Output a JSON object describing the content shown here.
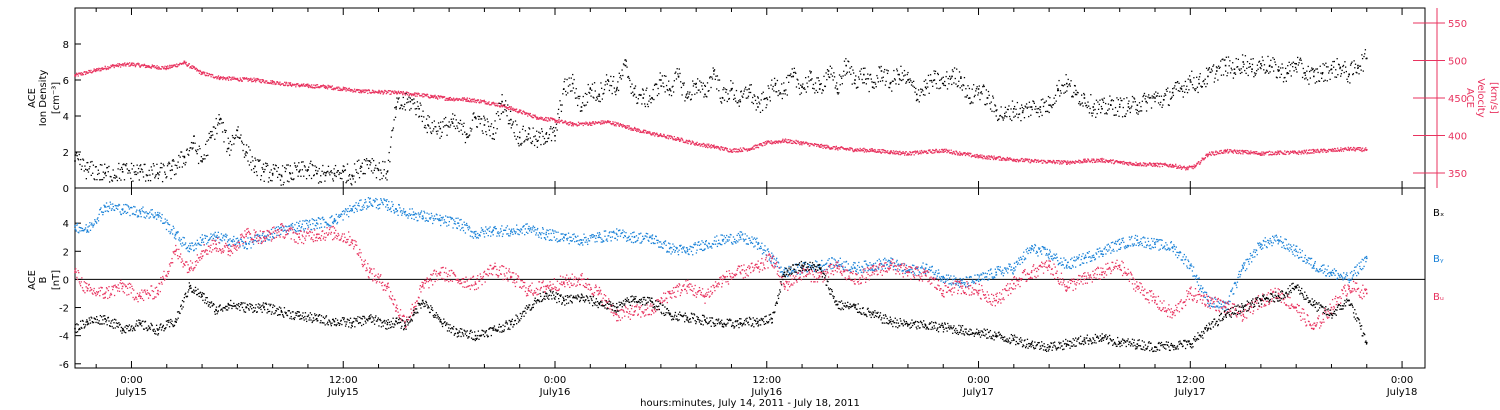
{
  "colors": {
    "density": "#000000",
    "velocity": "#e8335f",
    "bx": "#000000",
    "by": "#1a82d8",
    "bz": "#e8335f",
    "axis": "#000000"
  },
  "xaxis": {
    "title": "hours:minutes, July 14, 2011 - July 18, 2011",
    "range_hours": [
      20.8,
      97.3
    ],
    "ticks": [
      {
        "h": 24,
        "time": "0:00",
        "day": "July15"
      },
      {
        "h": 36,
        "time": "12:00",
        "day": "July15"
      },
      {
        "h": 48,
        "time": "0:00",
        "day": "July16"
      },
      {
        "h": 60,
        "time": "12:00",
        "day": "July16"
      },
      {
        "h": 72,
        "time": "0:00",
        "day": "July17"
      },
      {
        "h": 84,
        "time": "12:00",
        "day": "July17"
      },
      {
        "h": 96,
        "time": "0:00",
        "day": "July18"
      }
    ]
  },
  "chart_data": [
    {
      "type": "scatter",
      "panel": "top",
      "y_left": {
        "label_line1": "ACE",
        "label_line2": "Ion Density",
        "units": "[cm⁻³]",
        "ylim": [
          0,
          10
        ],
        "ticks": [
          0,
          2,
          4,
          6,
          8
        ]
      },
      "y_right": {
        "label_line1": "ACE",
        "label_line2": "Velocity",
        "units": "[km/s]",
        "ylim": [
          330,
          570
        ],
        "ticks": [
          350,
          400,
          450,
          500,
          550
        ]
      },
      "series": [
        {
          "key": "density",
          "axis": "left",
          "x": [
            20.8,
            21.5,
            22.5,
            23.5,
            24.5,
            25.5,
            26.3,
            27.0,
            27.5,
            28.0,
            28.5,
            29.0,
            29.5,
            30.0,
            30.5,
            31.0,
            31.5,
            32.0,
            32.5,
            33.0,
            33.5,
            34.0,
            34.5,
            35.0,
            35.5,
            36.0,
            36.5,
            37.0,
            37.5,
            38.0,
            38.5,
            39.0,
            39.3,
            39.8,
            40.3,
            40.8,
            41.5,
            42.2,
            43.0,
            43.5,
            44.0,
            44.5,
            45.0,
            45.5,
            46.0,
            46.5,
            47.0,
            47.5,
            48.0,
            48.5,
            49.0,
            49.5,
            50.0,
            50.5,
            51.0,
            51.5,
            52.0,
            52.5,
            53.0,
            53.5,
            54.0,
            54.5,
            55.0,
            55.5,
            56.0,
            56.5,
            57.0,
            57.5,
            58.0,
            58.5,
            59.0,
            59.5,
            60.0,
            60.5,
            61.0,
            61.5,
            62.0,
            62.5,
            63.0,
            63.5,
            64.0,
            64.5,
            65.0,
            65.5,
            66.0,
            66.5,
            67.0,
            67.5,
            68.0,
            68.5,
            69.0,
            69.5,
            70.0,
            70.5,
            71.0,
            71.5,
            72.0,
            72.5,
            73.0,
            73.5,
            74.0,
            74.5,
            75.0,
            75.5,
            76.0,
            76.5,
            77.0,
            77.5,
            78.0,
            78.5,
            79.0,
            79.5,
            80.0,
            80.5,
            81.0,
            81.5,
            82.0,
            82.5,
            83.0,
            83.5,
            84.0,
            84.5,
            85.0,
            85.5,
            86.0,
            86.5,
            87.0,
            87.5,
            88.0,
            88.5,
            89.0,
            89.5,
            90.0,
            90.5,
            91.0,
            91.5,
            92.0,
            92.5,
            93.0,
            93.5,
            94.0
          ],
          "y": [
            1.5,
            1.0,
            0.8,
            0.9,
            0.9,
            0.8,
            1.0,
            1.7,
            2.5,
            1.5,
            2.8,
            3.8,
            2.2,
            3.2,
            2.0,
            1.2,
            0.9,
            0.8,
            0.7,
            0.8,
            0.9,
            1.0,
            0.8,
            0.7,
            0.8,
            0.9,
            0.7,
            1.2,
            1.5,
            1.0,
            0.9,
            4.5,
            4.6,
            4.8,
            4.4,
            3.5,
            3.3,
            3.6,
            3.0,
            3.9,
            3.5,
            3.0,
            4.8,
            3.8,
            2.8,
            3.0,
            2.6,
            3.0,
            2.9,
            5.5,
            5.8,
            4.5,
            5.5,
            5.2,
            6.0,
            5.5,
            6.8,
            5.2,
            5.0,
            5.0,
            6.0,
            5.5,
            6.2,
            5.0,
            5.8,
            5.2,
            6.5,
            5.0,
            5.5,
            4.8,
            5.5,
            4.5,
            5.0,
            5.8,
            5.4,
            6.2,
            5.6,
            6.0,
            5.5,
            6.5,
            5.5,
            6.8,
            6.0,
            6.3,
            5.6,
            6.5,
            5.8,
            6.3,
            6.0,
            5.2,
            5.6,
            6.0,
            5.8,
            6.2,
            6.1,
            5.0,
            5.5,
            5.0,
            4.3,
            4.0,
            4.4,
            4.2,
            4.5,
            4.5,
            4.6,
            5.5,
            5.8,
            5.2,
            5.0,
            4.5,
            4.4,
            4.6,
            4.5,
            4.5,
            4.6,
            4.8,
            5.0,
            4.9,
            5.3,
            5.5,
            6.0,
            5.8,
            6.2,
            6.5,
            6.8,
            6.6,
            7.0,
            6.6,
            6.9,
            6.8,
            6.5,
            6.4,
            6.9,
            6.4,
            6.2,
            6.4,
            6.6,
            6.7,
            6.3,
            6.8,
            7.2
          ]
        },
        {
          "key": "velocity",
          "axis": "right",
          "x": [
            20.8,
            22.0,
            23.0,
            24.0,
            25.0,
            26.0,
            27.0,
            28.0,
            29.0,
            30.0,
            31.0,
            32.0,
            33.0,
            34.0,
            35.0,
            36.0,
            37.0,
            38.0,
            39.0,
            40.0,
            41.0,
            42.0,
            43.0,
            44.0,
            45.0,
            46.0,
            47.0,
            48.0,
            49.0,
            50.0,
            51.0,
            52.0,
            53.0,
            54.0,
            55.0,
            56.0,
            57.0,
            58.0,
            59.0,
            60.0,
            61.0,
            62.0,
            63.0,
            64.0,
            65.0,
            66.0,
            67.0,
            68.0,
            69.0,
            70.0,
            71.0,
            72.0,
            73.0,
            74.0,
            75.0,
            76.0,
            77.0,
            78.0,
            79.0,
            80.0,
            81.0,
            82.0,
            83.0,
            83.8,
            84.3,
            85.0,
            86.0,
            87.0,
            88.0,
            89.0,
            90.0,
            91.0,
            92.0,
            93.0,
            94.0
          ],
          "y": [
            480,
            487,
            493,
            495,
            492,
            490,
            497,
            483,
            477,
            475,
            474,
            471,
            468,
            466,
            465,
            462,
            459,
            458,
            457,
            455,
            452,
            449,
            448,
            445,
            440,
            432,
            424,
            420,
            415,
            416,
            418,
            412,
            405,
            400,
            395,
            389,
            385,
            380,
            382,
            390,
            393,
            390,
            386,
            383,
            381,
            380,
            378,
            376,
            378,
            380,
            376,
            372,
            370,
            368,
            366,
            365,
            364,
            366,
            367,
            364,
            362,
            361,
            360,
            356,
            359,
            375,
            379,
            378,
            376,
            377,
            377,
            379,
            380,
            382,
            381
          ]
        }
      ]
    },
    {
      "type": "scatter",
      "panel": "bottom",
      "y_left": {
        "label_line1": "ACE",
        "label_line2": "B",
        "units": "[nT]",
        "ylim": [
          -6.3,
          6.5
        ],
        "ticks": [
          -6,
          -4,
          -2,
          0,
          2,
          4
        ]
      },
      "zero_line": true,
      "series": [
        {
          "key": "bx",
          "name": "Bₓ",
          "x": [
            20.8,
            21.5,
            22.5,
            23.5,
            24.5,
            25.5,
            26.5,
            27.3,
            28.0,
            28.8,
            29.5,
            30.5,
            31.5,
            32.5,
            33.5,
            34.5,
            35.5,
            36.5,
            37.5,
            38.5,
            39.0,
            39.5,
            40.0,
            40.5,
            41.5,
            42.5,
            43.5,
            44.5,
            45.5,
            46.5,
            47.5,
            48.5,
            49.5,
            50.5,
            51.5,
            52.5,
            53.5,
            54.5,
            55.5,
            56.5,
            57.5,
            58.5,
            59.5,
            60.3,
            61.0,
            62.0,
            63.0,
            64.0,
            65.0,
            66.0,
            67.0,
            68.0,
            69.0,
            70.0,
            71.0,
            72.0,
            73.0,
            74.0,
            75.0,
            76.0,
            77.0,
            78.0,
            79.0,
            80.0,
            81.0,
            82.0,
            83.0,
            84.0,
            85.0,
            86.0,
            87.0,
            88.0,
            89.0,
            90.0,
            91.0,
            92.0,
            93.0,
            94.0
          ],
          "y": [
            -3.5,
            -3.0,
            -2.8,
            -3.5,
            -3.2,
            -3.6,
            -3.0,
            -0.5,
            -1.2,
            -2.2,
            -1.8,
            -2.0,
            -2.0,
            -2.3,
            -2.6,
            -2.8,
            -3.0,
            -3.1,
            -2.8,
            -3.2,
            -3.0,
            -3.3,
            -2.5,
            -1.5,
            -3.0,
            -3.8,
            -4.0,
            -3.6,
            -3.2,
            -2.0,
            -1.0,
            -1.5,
            -1.3,
            -1.7,
            -2.0,
            -1.4,
            -1.6,
            -2.5,
            -2.7,
            -2.9,
            -3.2,
            -3.1,
            -3.0,
            -2.8,
            0.5,
            1.0,
            0.8,
            -1.8,
            -2.0,
            -2.5,
            -3.0,
            -3.2,
            -3.3,
            -3.4,
            -3.6,
            -3.8,
            -4.0,
            -4.3,
            -4.6,
            -4.8,
            -4.6,
            -4.3,
            -4.2,
            -4.5,
            -4.6,
            -4.8,
            -4.7,
            -4.6,
            -3.5,
            -2.5,
            -2.0,
            -1.5,
            -1.2,
            -0.5,
            -1.8,
            -2.5,
            -1.5,
            -4.5
          ]
        },
        {
          "key": "by",
          "name": "Bᵧ",
          "x": [
            20.8,
            21.5,
            22.5,
            23.5,
            24.5,
            25.5,
            26.5,
            27.3,
            28.0,
            28.8,
            29.5,
            30.5,
            31.5,
            32.5,
            33.5,
            34.5,
            35.5,
            36.5,
            37.5,
            38.5,
            39.0,
            39.5,
            40.0,
            40.5,
            41.5,
            42.5,
            43.5,
            44.5,
            45.5,
            46.5,
            47.5,
            48.5,
            49.5,
            50.5,
            51.5,
            52.5,
            53.5,
            54.5,
            55.5,
            56.5,
            57.5,
            58.5,
            59.5,
            60.3,
            61.0,
            62.0,
            63.0,
            64.0,
            65.0,
            66.0,
            67.0,
            68.0,
            69.0,
            70.0,
            71.0,
            72.0,
            73.0,
            74.0,
            75.0,
            76.0,
            77.0,
            78.0,
            79.0,
            80.0,
            81.0,
            82.0,
            83.0,
            84.0,
            85.0,
            86.0,
            87.0,
            88.0,
            89.0,
            90.0,
            91.0,
            92.0,
            93.0,
            94.0
          ],
          "y": [
            3.8,
            3.5,
            5.2,
            5.0,
            4.8,
            4.6,
            3.2,
            2.2,
            2.8,
            3.0,
            2.8,
            2.5,
            3.0,
            3.5,
            3.8,
            4.0,
            4.2,
            5.0,
            5.5,
            5.3,
            5.0,
            4.8,
            4.6,
            4.5,
            4.2,
            4.0,
            3.2,
            3.5,
            3.4,
            3.6,
            3.2,
            3.0,
            2.8,
            3.0,
            3.2,
            3.0,
            2.9,
            2.2,
            2.0,
            2.5,
            2.8,
            3.0,
            2.5,
            1.5,
            0.5,
            0.8,
            1.0,
            1.2,
            0.8,
            1.0,
            1.2,
            0.6,
            0.8,
            0.2,
            -0.3,
            0.0,
            0.5,
            0.8,
            2.2,
            1.8,
            1.0,
            1.5,
            2.0,
            2.5,
            2.8,
            2.5,
            2.3,
            1.0,
            -1.5,
            -2.0,
            0.8,
            2.5,
            2.8,
            2.0,
            1.0,
            0.5,
            0.0,
            1.5
          ]
        },
        {
          "key": "bz",
          "name": "Bᵤ",
          "x": [
            20.8,
            21.5,
            22.5,
            23.5,
            24.5,
            25.5,
            26.5,
            27.3,
            28.0,
            28.8,
            29.5,
            30.5,
            31.5,
            32.5,
            33.5,
            34.5,
            35.5,
            36.5,
            37.5,
            38.5,
            39.0,
            39.5,
            40.0,
            40.5,
            41.5,
            42.5,
            43.5,
            44.5,
            45.5,
            46.5,
            47.5,
            48.5,
            49.5,
            50.5,
            51.5,
            52.5,
            53.5,
            54.5,
            55.5,
            56.5,
            57.5,
            58.5,
            59.5,
            60.3,
            61.0,
            62.0,
            63.0,
            64.0,
            65.0,
            66.0,
            67.0,
            68.0,
            69.0,
            70.0,
            71.0,
            72.0,
            73.0,
            74.0,
            75.0,
            76.0,
            77.0,
            78.0,
            79.0,
            80.0,
            81.0,
            82.0,
            83.0,
            84.0,
            85.0,
            86.0,
            87.0,
            88.0,
            89.0,
            90.0,
            91.0,
            92.0,
            93.0,
            94.0
          ],
          "y": [
            0.5,
            -0.8,
            -1.0,
            -0.5,
            -1.2,
            -0.8,
            2.0,
            0.8,
            2.0,
            2.5,
            2.0,
            3.2,
            3.0,
            3.5,
            3.0,
            3.2,
            3.3,
            2.8,
            0.5,
            -0.5,
            -2.0,
            -3.0,
            -2.0,
            -0.5,
            0.5,
            0.0,
            -0.3,
            0.8,
            0.2,
            -0.8,
            -0.5,
            -0.2,
            0.0,
            -1.0,
            -2.5,
            -2.3,
            -2.2,
            -1.0,
            -0.5,
            -1.2,
            0.0,
            0.5,
            0.8,
            1.5,
            -0.5,
            0.5,
            0.2,
            0.8,
            0.0,
            0.5,
            1.0,
            0.5,
            0.3,
            -0.8,
            -0.5,
            -0.8,
            -1.5,
            -0.3,
            0.5,
            1.0,
            -0.5,
            0.0,
            0.5,
            1.0,
            -0.5,
            -1.5,
            -2.5,
            -1.0,
            -1.5,
            -2.0,
            -2.5,
            -1.5,
            -1.0,
            -2.0,
            -3.5,
            -2.0,
            -0.5,
            -1.0
          ]
        }
      ]
    }
  ]
}
